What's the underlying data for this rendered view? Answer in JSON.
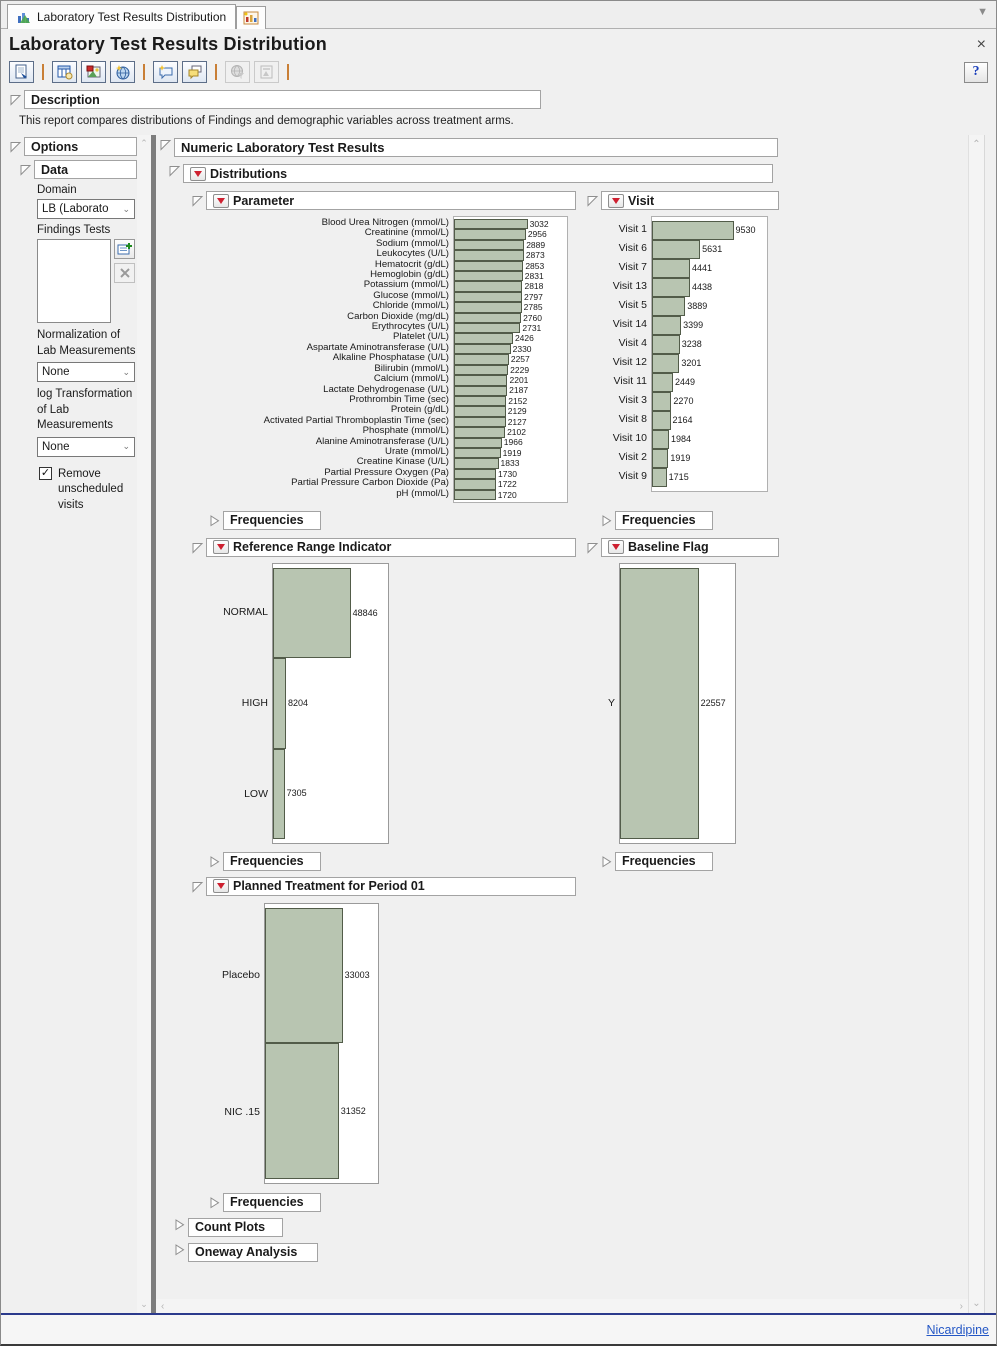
{
  "tabs": {
    "main_label": "Laboratory Test Results Distribution",
    "overflow_glyph": "▼"
  },
  "window": {
    "title": "Laboratory Test Results Distribution",
    "close_glyph": "×",
    "help_glyph": "?"
  },
  "toolbar": {
    "icon_names": [
      "export-report-icon",
      "data-table-icon",
      "save-picture-icon",
      "web-report-icon",
      "annotate-icon",
      "notes-icon",
      "globe-filter-icon",
      "report-layout-icon",
      "help-icon"
    ]
  },
  "description": {
    "header": "Description",
    "text": "This report compares distributions of Findings and demographic variables across treatment arms."
  },
  "options": {
    "header": "Options",
    "data_header": "Data",
    "domain_label": "Domain",
    "domain_value": "LB (Laborato",
    "findings_tests_label": "Findings Tests",
    "normalization_label": "Normalization of Lab Measurements",
    "normalization_value": "None",
    "log_label": "log Transformation of Lab Measurements",
    "log_value": "None",
    "remove_unscheduled_label": "Remove unscheduled visits",
    "remove_unscheduled_checked": true,
    "check_glyph": "✓",
    "chevron_glyph": "⌄"
  },
  "main": {
    "section_title": "Numeric Laboratory Test Results",
    "distributions_title": "Distributions",
    "frequencies_label": "Frequencies",
    "count_plots_label": "Count Plots",
    "oneway_label": "Oneway Analysis"
  },
  "scrollbar": {
    "up": "⌃",
    "down": "⌄",
    "left": "‹",
    "right": "›"
  },
  "statusbar": {
    "link_label": "Nicardipine"
  },
  "colors": {
    "bar_fill": "#b8c5b1",
    "bar_border": "#525c49",
    "red_triangle": "#ce2030",
    "status_line": "#2b3a8c",
    "link": "#2457c5"
  },
  "chart_data": [
    {
      "id": "parameter",
      "type": "bar",
      "orientation": "horizontal",
      "title": "Parameter",
      "categories": [
        "Blood Urea Nitrogen (mmol/L)",
        "Creatinine (mmol/L)",
        "Sodium (mmol/L)",
        "Leukocytes (U/L)",
        "Hematocrit (g/dL)",
        "Hemoglobin (g/dL)",
        "Potassium (mmol/L)",
        "Glucose (mmol/L)",
        "Chloride (mmol/L)",
        "Carbon Dioxide (mg/dL)",
        "Erythrocytes (U/L)",
        "Platelet (U/L)",
        "Aspartate Aminotransferase (U/L)",
        "Alkaline Phosphatase (U/L)",
        "Bilirubin (mmol/L)",
        "Calcium (mmol/L)",
        "Lactate Dehydrogenase (U/L)",
        "Prothrombin Time (sec)",
        "Protein (g/dL)",
        "Activated Partial Thromboplastin Time (sec)",
        "Phosphate (mmol/L)",
        "Alanine Aminotransferase (U/L)",
        "Urate (mmol/L)",
        "Creatine Kinase (U/L)",
        "Partial Pressure Oxygen (Pa)",
        "Partial Pressure Carbon Dioxide (Pa)",
        "pH (mmol/L)"
      ],
      "values": [
        3032,
        2956,
        2889,
        2873,
        2853,
        2831,
        2818,
        2797,
        2785,
        2760,
        2731,
        2426,
        2330,
        2257,
        2229,
        2201,
        2187,
        2152,
        2129,
        2127,
        2102,
        1966,
        1919,
        1833,
        1730,
        1722,
        1720
      ],
      "axis_max": 4650,
      "value_labels": true
    },
    {
      "id": "visit",
      "type": "bar",
      "orientation": "horizontal",
      "title": "Visit",
      "categories": [
        "Visit 1",
        "Visit 6",
        "Visit 7",
        "Visit 13",
        "Visit 5",
        "Visit 14",
        "Visit 4",
        "Visit 12",
        "Visit 11",
        "Visit 3",
        "Visit 8",
        "Visit 10",
        "Visit 2",
        "Visit 9"
      ],
      "values": [
        9530,
        5631,
        4441,
        4438,
        3889,
        3399,
        3238,
        3201,
        2449,
        2270,
        2164,
        1984,
        1919,
        1715
      ],
      "axis_max": 13440,
      "value_labels": true
    },
    {
      "id": "rri",
      "type": "bar",
      "orientation": "horizontal",
      "title": "Reference Range Indicator",
      "categories": [
        "NORMAL",
        "HIGH",
        "LOW"
      ],
      "values": [
        48846,
        8204,
        7305
      ],
      "axis_max": 72400,
      "value_labels": true
    },
    {
      "id": "baseline",
      "type": "bar",
      "orientation": "horizontal",
      "title": "Baseline Flag",
      "categories": [
        "Y"
      ],
      "values": [
        22557
      ],
      "axis_max": 33000,
      "value_labels": true
    },
    {
      "id": "treatment",
      "type": "bar",
      "orientation": "horizontal",
      "title": "Planned Treatment for Period 01",
      "categories": [
        "Placebo",
        "NIC .15"
      ],
      "values": [
        33003,
        31352
      ],
      "axis_max": 48060,
      "value_labels": true
    }
  ]
}
